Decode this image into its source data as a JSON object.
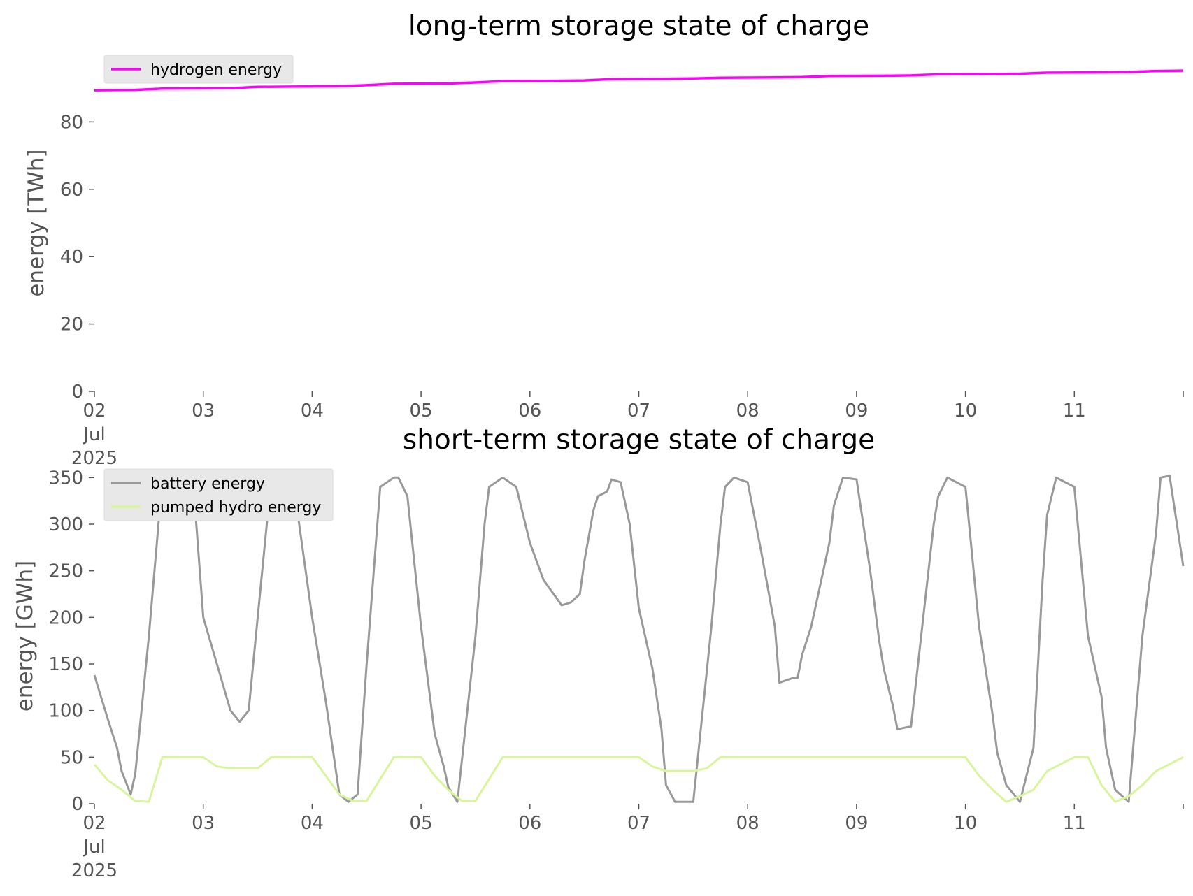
{
  "chart_data": [
    {
      "type": "line",
      "title": "long-term storage state of charge",
      "xlabel": "",
      "ylabel": "energy [TWh]",
      "ylim": [
        0,
        100
      ],
      "xlim": [
        "2025-07-02",
        "2025-07-12"
      ],
      "yticks": [
        0,
        20,
        40,
        60,
        80
      ],
      "xticks": [
        {
          "value": "2025-07-02",
          "label": "02\nJul\n2025"
        },
        {
          "value": "2025-07-03",
          "label": "03"
        },
        {
          "value": "2025-07-04",
          "label": "04"
        },
        {
          "value": "2025-07-05",
          "label": "05"
        },
        {
          "value": "2025-07-06",
          "label": "06"
        },
        {
          "value": "2025-07-07",
          "label": "07"
        },
        {
          "value": "2025-07-08",
          "label": "08"
        },
        {
          "value": "2025-07-09",
          "label": "09"
        },
        {
          "value": "2025-07-10",
          "label": "10"
        },
        {
          "value": "2025-07-11",
          "label": "11"
        },
        {
          "value": "2025-07-12",
          "label": ""
        }
      ],
      "grid": false,
      "legend_position": "top-left",
      "series": [
        {
          "name": "hydrogen energy",
          "color": "#ff00ff",
          "x": [
            "2025-07-02 00:00",
            "2025-07-02 09:00",
            "2025-07-02 15:00",
            "2025-07-03 06:00",
            "2025-07-03 12:00",
            "2025-07-04 06:00",
            "2025-07-04 12:00",
            "2025-07-04 18:00",
            "2025-07-05 06:00",
            "2025-07-05 12:00",
            "2025-07-05 18:00",
            "2025-07-06 06:00",
            "2025-07-06 12:00",
            "2025-07-06 18:00",
            "2025-07-07 06:00",
            "2025-07-07 12:00",
            "2025-07-07 18:00",
            "2025-07-08 06:00",
            "2025-07-08 12:00",
            "2025-07-08 18:00",
            "2025-07-09 06:00",
            "2025-07-09 12:00",
            "2025-07-09 18:00",
            "2025-07-10 06:00",
            "2025-07-10 12:00",
            "2025-07-10 18:00",
            "2025-07-11 06:00",
            "2025-07-11 12:00",
            "2025-07-11 18:00",
            "2025-07-12 00:00"
          ],
          "y": [
            89.4,
            89.5,
            89.9,
            90.0,
            90.4,
            90.6,
            90.9,
            91.3,
            91.4,
            91.7,
            92.1,
            92.2,
            92.3,
            92.7,
            92.8,
            92.9,
            93.1,
            93.2,
            93.3,
            93.6,
            93.7,
            93.8,
            94.1,
            94.2,
            94.3,
            94.6,
            94.7,
            94.8,
            95.1,
            95.2
          ]
        }
      ]
    },
    {
      "type": "line",
      "title": "short-term storage state of charge",
      "xlabel": "",
      "ylabel": "energy [GWh]",
      "ylim": [
        0,
        360
      ],
      "xlim": [
        "2025-07-02",
        "2025-07-12"
      ],
      "yticks": [
        0,
        50,
        100,
        150,
        200,
        250,
        300,
        350
      ],
      "xticks": [
        {
          "value": "2025-07-02",
          "label": "02\nJul\n2025"
        },
        {
          "value": "2025-07-03",
          "label": "03"
        },
        {
          "value": "2025-07-04",
          "label": "04"
        },
        {
          "value": "2025-07-05",
          "label": "05"
        },
        {
          "value": "2025-07-06",
          "label": "06"
        },
        {
          "value": "2025-07-07",
          "label": "07"
        },
        {
          "value": "2025-07-08",
          "label": "08"
        },
        {
          "value": "2025-07-09",
          "label": "09"
        },
        {
          "value": "2025-07-10",
          "label": "10"
        },
        {
          "value": "2025-07-11",
          "label": "11"
        },
        {
          "value": "2025-07-12",
          "label": ""
        }
      ],
      "grid": false,
      "legend_position": "top-left",
      "series": [
        {
          "name": "battery energy",
          "color": "#999999",
          "x": [
            "2025-07-02 00:00",
            "2025-07-02 03:00",
            "2025-07-02 05:00",
            "2025-07-02 06:00",
            "2025-07-02 08:00",
            "2025-07-02 09:00",
            "2025-07-02 12:00",
            "2025-07-02 15:00",
            "2025-07-02 21:00",
            "2025-07-02 22:00",
            "2025-07-03 00:00",
            "2025-07-03 03:00",
            "2025-07-03 06:00",
            "2025-07-03 08:00",
            "2025-07-03 10:00",
            "2025-07-03 12:00",
            "2025-07-03 15:00",
            "2025-07-03 18:00",
            "2025-07-03 20:00",
            "2025-07-04 00:00",
            "2025-07-04 03:00",
            "2025-07-04 06:00",
            "2025-07-04 08:00",
            "2025-07-04 10:00",
            "2025-07-04 12:00",
            "2025-07-04 15:00",
            "2025-07-04 18:00",
            "2025-07-04 19:00",
            "2025-07-04 21:00",
            "2025-07-05 00:00",
            "2025-07-05 03:00",
            "2025-07-05 05:00",
            "2025-07-05 06:00",
            "2025-07-05 08:00",
            "2025-07-05 12:00",
            "2025-07-05 14:00",
            "2025-07-05 15:00",
            "2025-07-05 18:00",
            "2025-07-05 21:00",
            "2025-07-06 00:00",
            "2025-07-06 03:00",
            "2025-07-06 07:00",
            "2025-07-06 09:00",
            "2025-07-06 11:00",
            "2025-07-06 12:00",
            "2025-07-06 14:00",
            "2025-07-06 15:00",
            "2025-07-06 17:00",
            "2025-07-06 18:00",
            "2025-07-06 20:00",
            "2025-07-06 22:00",
            "2025-07-07 00:00",
            "2025-07-07 03:00",
            "2025-07-07 05:00",
            "2025-07-07 06:00",
            "2025-07-07 08:00",
            "2025-07-07 12:00",
            "2025-07-07 16:00",
            "2025-07-07 18:00",
            "2025-07-07 19:00",
            "2025-07-07 21:00",
            "2025-07-08 00:00",
            "2025-07-08 03:00",
            "2025-07-08 06:00",
            "2025-07-08 07:00",
            "2025-07-08 10:00",
            "2025-07-08 11:00",
            "2025-07-08 12:00",
            "2025-07-08 14:00",
            "2025-07-08 18:00",
            "2025-07-08 19:00",
            "2025-07-08 21:00",
            "2025-07-09 00:00",
            "2025-07-09 03:00",
            "2025-07-09 05:00",
            "2025-07-09 06:00",
            "2025-07-09 08:00",
            "2025-07-09 09:00",
            "2025-07-09 12:00",
            "2025-07-09 17:00",
            "2025-07-09 18:00",
            "2025-07-09 20:00",
            "2025-07-10 00:00",
            "2025-07-10 03:00",
            "2025-07-10 06:00",
            "2025-07-10 07:00",
            "2025-07-10 09:00",
            "2025-07-10 12:00",
            "2025-07-10 15:00",
            "2025-07-10 17:00",
            "2025-07-10 18:00",
            "2025-07-10 20:00",
            "2025-07-11 00:00",
            "2025-07-11 03:00",
            "2025-07-11 06:00",
            "2025-07-11 07:00",
            "2025-07-11 09:00",
            "2025-07-11 12:00",
            "2025-07-11 15:00",
            "2025-07-11 18:00",
            "2025-07-11 19:00",
            "2025-07-11 21:00",
            "2025-07-12 00:00"
          ],
          "y": [
            138,
            90,
            60,
            35,
            10,
            32,
            180,
            350,
            350,
            330,
            200,
            150,
            100,
            88,
            100,
            200,
            350,
            350,
            340,
            200,
            110,
            10,
            2,
            10,
            150,
            340,
            350,
            350,
            330,
            190,
            75,
            40,
            18,
            2,
            180,
            300,
            340,
            350,
            340,
            280,
            240,
            213,
            216,
            225,
            260,
            315,
            330,
            335,
            348,
            345,
            300,
            210,
            145,
            80,
            20,
            2,
            2,
            190,
            300,
            340,
            350,
            345,
            270,
            190,
            130,
            135,
            135,
            160,
            190,
            280,
            320,
            350,
            348,
            250,
            175,
            145,
            105,
            80,
            83,
            300,
            330,
            350,
            340,
            190,
            95,
            55,
            20,
            2,
            60,
            240,
            310,
            350,
            340,
            180,
            115,
            60,
            15,
            2,
            180,
            290,
            350,
            352,
            255
          ]
        },
        {
          "name": "pumped hydro energy",
          "color": "#d8f59c",
          "x": [
            "2025-07-02 00:00",
            "2025-07-02 03:00",
            "2025-07-02 06:00",
            "2025-07-02 09:00",
            "2025-07-02 12:00",
            "2025-07-02 15:00",
            "2025-07-02 18:00",
            "2025-07-03 00:00",
            "2025-07-03 03:00",
            "2025-07-03 06:00",
            "2025-07-03 12:00",
            "2025-07-03 15:00",
            "2025-07-03 18:00",
            "2025-07-04 00:00",
            "2025-07-04 03:00",
            "2025-07-04 06:00",
            "2025-07-04 09:00",
            "2025-07-04 12:00",
            "2025-07-04 18:00",
            "2025-07-05 00:00",
            "2025-07-05 03:00",
            "2025-07-05 06:00",
            "2025-07-05 09:00",
            "2025-07-05 12:00",
            "2025-07-05 18:00",
            "2025-07-06 00:00",
            "2025-07-06 18:00",
            "2025-07-07 00:00",
            "2025-07-07 03:00",
            "2025-07-07 06:00",
            "2025-07-07 12:00",
            "2025-07-07 15:00",
            "2025-07-07 18:00",
            "2025-07-08 00:00",
            "2025-07-08 12:00",
            "2025-07-09 00:00",
            "2025-07-09 12:00",
            "2025-07-10 00:00",
            "2025-07-10 03:00",
            "2025-07-10 06:00",
            "2025-07-10 09:00",
            "2025-07-10 12:00",
            "2025-07-10 15:00",
            "2025-07-10 18:00",
            "2025-07-11 00:00",
            "2025-07-11 03:00",
            "2025-07-11 06:00",
            "2025-07-11 09:00",
            "2025-07-11 12:00",
            "2025-07-11 15:00",
            "2025-07-11 18:00",
            "2025-07-12 00:00"
          ],
          "y": [
            42,
            25,
            15,
            3,
            2,
            50,
            50,
            50,
            40,
            38,
            38,
            50,
            50,
            50,
            30,
            10,
            3,
            3,
            50,
            50,
            30,
            15,
            3,
            3,
            50,
            50,
            50,
            50,
            40,
            35,
            35,
            38,
            50,
            50,
            50,
            50,
            50,
            50,
            30,
            15,
            2,
            8,
            15,
            35,
            50,
            50,
            20,
            2,
            8,
            20,
            35,
            50
          ]
        }
      ]
    }
  ]
}
